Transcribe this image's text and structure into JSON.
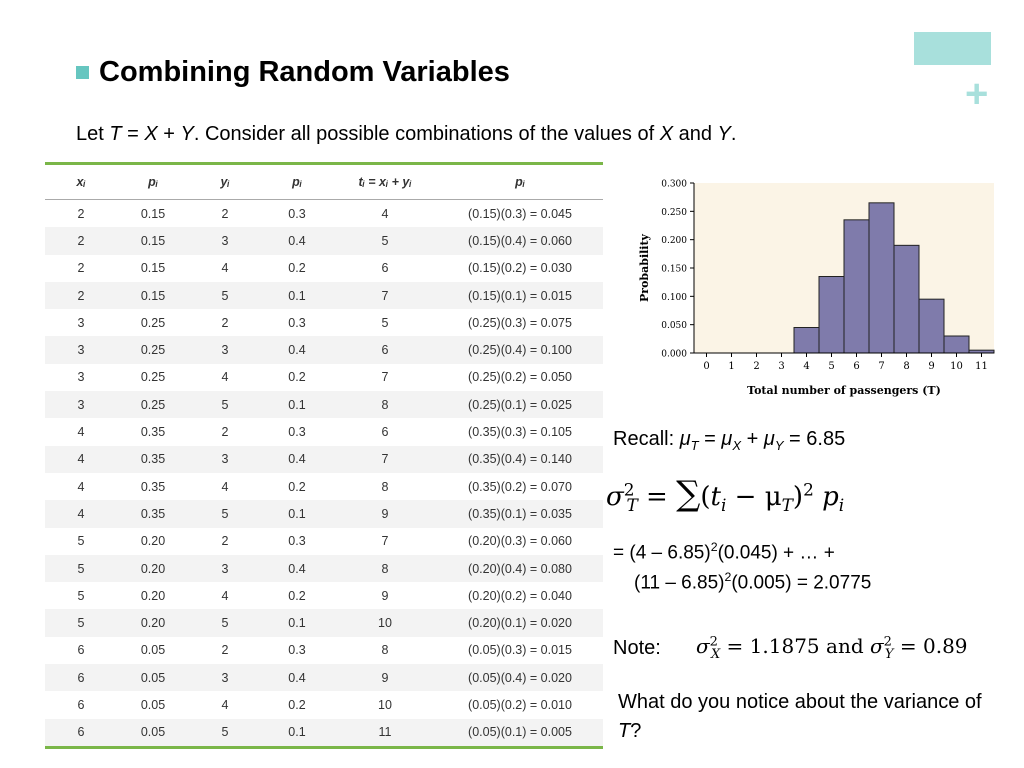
{
  "slide": {
    "title": "Combining Random Variables",
    "intro_let": "Let",
    "intro_T": "T",
    "intro_eq": " = ",
    "intro_X": "X",
    "intro_plus": " + ",
    "intro_Y": "Y",
    "intro_rest": ". Consider all possible combinations of the values of",
    "intro_X2": "X",
    "intro_and": "and",
    "intro_Y2": "Y",
    "intro_end": "."
  },
  "table": {
    "headers": [
      "xᵢ",
      "pᵢ",
      "yᵢ",
      "pᵢ",
      "tᵢ = xᵢ + yᵢ",
      "pᵢ"
    ],
    "rows": [
      [
        "2",
        "0.15",
        "2",
        "0.3",
        "4",
        "(0.15)(0.3) = 0.045"
      ],
      [
        "2",
        "0.15",
        "3",
        "0.4",
        "5",
        "(0.15)(0.4) = 0.060"
      ],
      [
        "2",
        "0.15",
        "4",
        "0.2",
        "6",
        "(0.15)(0.2) = 0.030"
      ],
      [
        "2",
        "0.15",
        "5",
        "0.1",
        "7",
        "(0.15)(0.1) = 0.015"
      ],
      [
        "3",
        "0.25",
        "2",
        "0.3",
        "5",
        "(0.25)(0.3) = 0.075"
      ],
      [
        "3",
        "0.25",
        "3",
        "0.4",
        "6",
        "(0.25)(0.4) = 0.100"
      ],
      [
        "3",
        "0.25",
        "4",
        "0.2",
        "7",
        "(0.25)(0.2) = 0.050"
      ],
      [
        "3",
        "0.25",
        "5",
        "0.1",
        "8",
        "(0.25)(0.1) = 0.025"
      ],
      [
        "4",
        "0.35",
        "2",
        "0.3",
        "6",
        "(0.35)(0.3) = 0.105"
      ],
      [
        "4",
        "0.35",
        "3",
        "0.4",
        "7",
        "(0.35)(0.4) = 0.140"
      ],
      [
        "4",
        "0.35",
        "4",
        "0.2",
        "8",
        "(0.35)(0.2) = 0.070"
      ],
      [
        "4",
        "0.35",
        "5",
        "0.1",
        "9",
        "(0.35)(0.1) = 0.035"
      ],
      [
        "5",
        "0.20",
        "2",
        "0.3",
        "7",
        "(0.20)(0.3) = 0.060"
      ],
      [
        "5",
        "0.20",
        "3",
        "0.4",
        "8",
        "(0.20)(0.4) = 0.080"
      ],
      [
        "5",
        "0.20",
        "4",
        "0.2",
        "9",
        "(0.20)(0.2) = 0.040"
      ],
      [
        "5",
        "0.20",
        "5",
        "0.1",
        "10",
        "(0.20)(0.1) = 0.020"
      ],
      [
        "6",
        "0.05",
        "2",
        "0.3",
        "8",
        "(0.05)(0.3) = 0.015"
      ],
      [
        "6",
        "0.05",
        "3",
        "0.4",
        "9",
        "(0.05)(0.4) = 0.020"
      ],
      [
        "6",
        "0.05",
        "4",
        "0.2",
        "10",
        "(0.05)(0.2) = 0.010"
      ],
      [
        "6",
        "0.05",
        "5",
        "0.1",
        "11",
        "(0.05)(0.1) = 0.005"
      ]
    ]
  },
  "chart_data": {
    "type": "bar",
    "categories": [
      "0",
      "1",
      "2",
      "3",
      "4",
      "5",
      "6",
      "7",
      "8",
      "9",
      "10",
      "11"
    ],
    "values": [
      0,
      0,
      0,
      0,
      0.045,
      0.135,
      0.235,
      0.265,
      0.19,
      0.095,
      0.03,
      0.005
    ],
    "xlabel": "Total number of passengers (T)",
    "ylabel": "Probability",
    "ylim": [
      0,
      0.3
    ],
    "yticks": [
      "0.000",
      "0.050",
      "0.100",
      "0.150",
      "0.200",
      "0.250",
      "0.300"
    ],
    "bar_color": "#7f7bab",
    "grid": false
  },
  "recall": {
    "label": "Recall:",
    "mu": "μ",
    "T": "T",
    "X": "X",
    "Y": "Y",
    "eq": " = ",
    "plus": " + ",
    "value": " = 6.85"
  },
  "formula": {
    "sigma": "σ",
    "sq": "2",
    "T": "T",
    "eq": " = ",
    "sum": "∑",
    "open": "(",
    "t": "t",
    "i": "i",
    "minus": " − ",
    "mu": "μ",
    "close": ")",
    "p": "p"
  },
  "calc": {
    "line1_a": "= (4 – 6.85)",
    "line1_b": "(0.045) + … +",
    "line2_a": "(11 – 6.85)",
    "line2_b": "(0.005) = 2.0775",
    "sq": "2"
  },
  "note": {
    "label": "Note:",
    "sigma": "σ",
    "X": "X",
    "Y": "Y",
    "sq": "2",
    "val_x": " = 1.1875 and ",
    "val_y": " = 0.89"
  },
  "question": {
    "text1": "What do you notice about the variance of",
    "T": "T",
    "text2": "?"
  }
}
